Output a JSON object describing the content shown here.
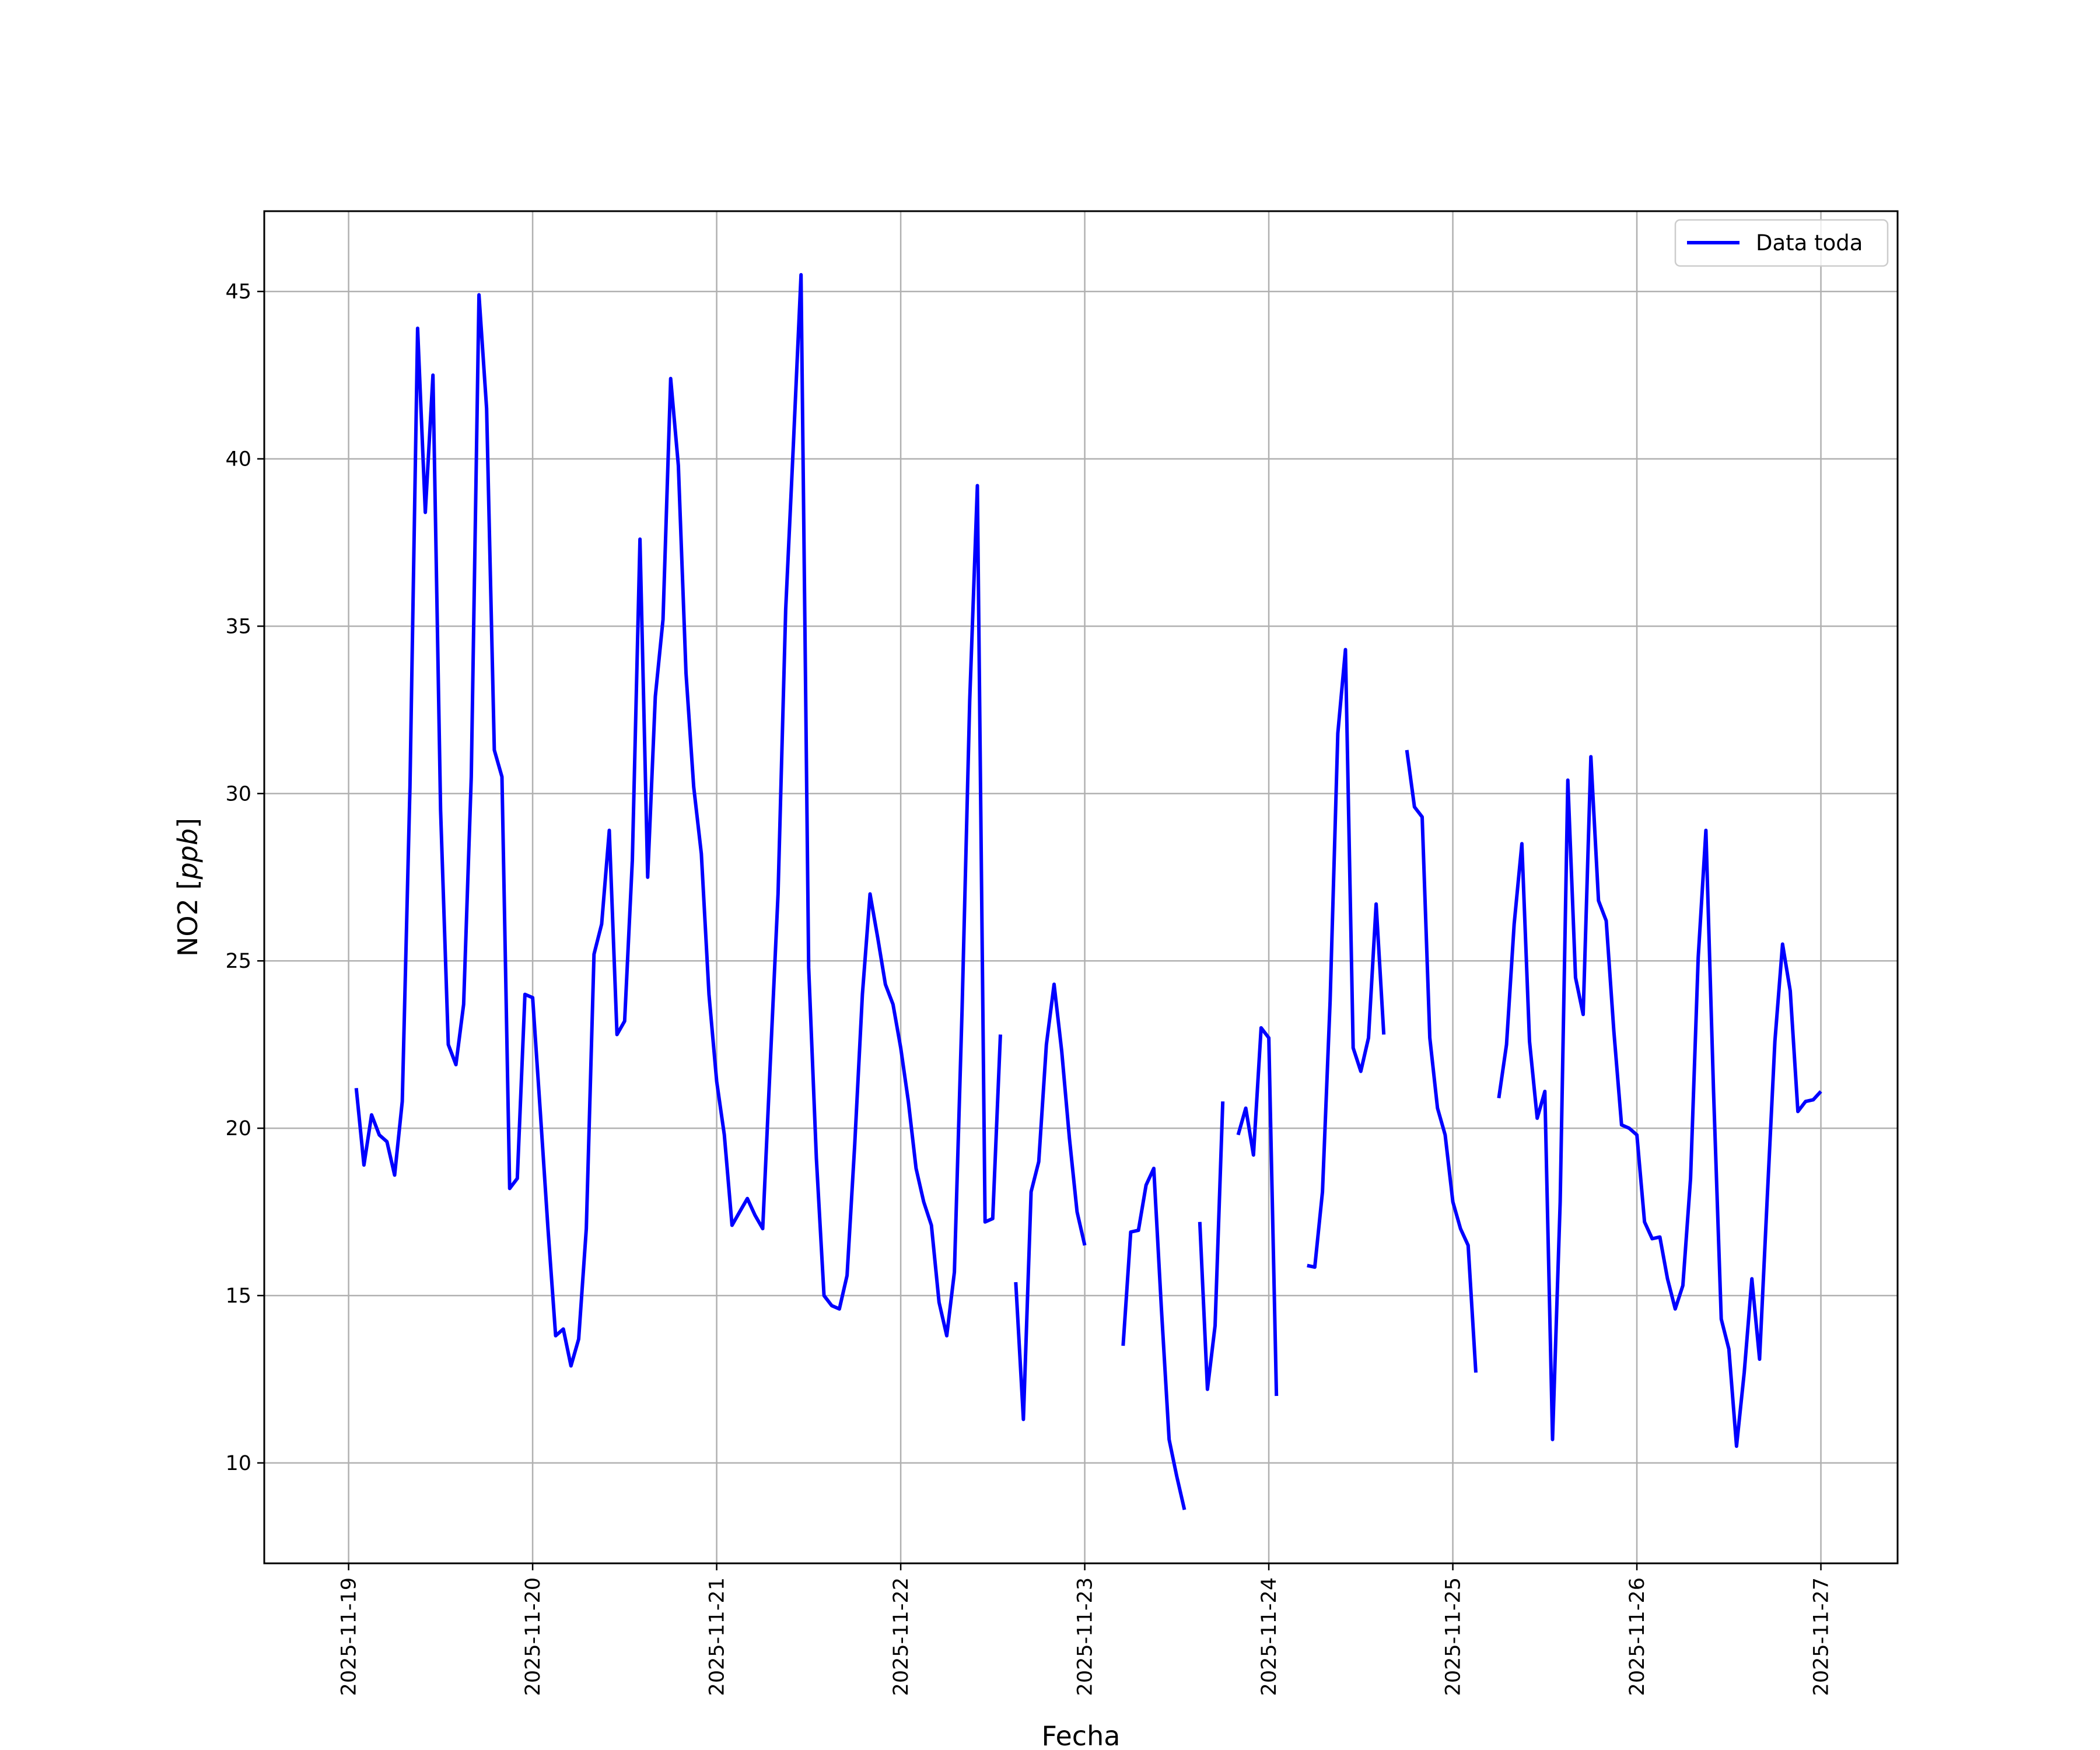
{
  "chart_data": {
    "type": "line",
    "xlabel": "Fecha",
    "ylabel_text": "NO2",
    "ylabel_unit": "ppb",
    "x_ticks": [
      "2025-11-19",
      "2025-11-20",
      "2025-11-21",
      "2025-11-22",
      "2025-11-23",
      "2025-11-24",
      "2025-11-25",
      "2025-11-26",
      "2025-11-27"
    ],
    "y_ticks": [
      10,
      15,
      20,
      25,
      30,
      35,
      40,
      45
    ],
    "xlim": [
      "2025-11-18 13:00",
      "2025-11-27 10:00"
    ],
    "ylim": [
      7.0,
      47.4
    ],
    "grid": true,
    "legend_position": "top-right",
    "colors": {
      "line": "#0000ff",
      "grid": "#b0b0b0"
    },
    "series": [
      {
        "name": "Data toda",
        "points": [
          [
            "2025-11-19 01:00",
            21.2
          ],
          [
            "2025-11-19 02:00",
            18.9
          ],
          [
            "2025-11-19 03:00",
            20.4
          ],
          [
            "2025-11-19 04:00",
            19.8
          ],
          [
            "2025-11-19 05:00",
            19.6
          ],
          [
            "2025-11-19 06:00",
            18.6
          ],
          [
            "2025-11-19 07:00",
            20.8
          ],
          [
            "2025-11-19 08:00",
            30.2
          ],
          [
            "2025-11-19 09:00",
            43.9
          ],
          [
            "2025-11-19 10:00",
            38.4
          ],
          [
            "2025-11-19 11:00",
            42.5
          ],
          [
            "2025-11-19 12:00",
            29.5
          ],
          [
            "2025-11-19 13:00",
            22.5
          ],
          [
            "2025-11-19 14:00",
            21.9
          ],
          [
            "2025-11-19 15:00",
            23.7
          ],
          [
            "2025-11-19 16:00",
            30.5
          ],
          [
            "2025-11-19 17:00",
            44.9
          ],
          [
            "2025-11-19 18:00",
            41.5
          ],
          [
            "2025-11-19 19:00",
            31.3
          ],
          [
            "2025-11-19 20:00",
            30.5
          ],
          [
            "2025-11-19 21:00",
            18.2
          ],
          [
            "2025-11-19 22:00",
            18.5
          ],
          [
            "2025-11-19 23:00",
            24.0
          ],
          [
            "2025-11-20 00:00",
            23.9
          ],
          [
            "2025-11-20 01:00",
            20.5
          ],
          [
            "2025-11-20 02:00",
            17.0
          ],
          [
            "2025-11-20 03:00",
            13.8
          ],
          [
            "2025-11-20 04:00",
            14.0
          ],
          [
            "2025-11-20 05:00",
            12.9
          ],
          [
            "2025-11-20 06:00",
            13.7
          ],
          [
            "2025-11-20 07:00",
            17.0
          ],
          [
            "2025-11-20 08:00",
            25.2
          ],
          [
            "2025-11-20 09:00",
            26.1
          ],
          [
            "2025-11-20 10:00",
            28.9
          ],
          [
            "2025-11-20 11:00",
            22.8
          ],
          [
            "2025-11-20 12:00",
            23.2
          ],
          [
            "2025-11-20 13:00",
            28.0
          ],
          [
            "2025-11-20 14:00",
            37.6
          ],
          [
            "2025-11-20 15:00",
            27.5
          ],
          [
            "2025-11-20 16:00",
            32.9
          ],
          [
            "2025-11-20 17:00",
            35.2
          ],
          [
            "2025-11-20 18:00",
            42.4
          ],
          [
            "2025-11-20 19:00",
            39.8
          ],
          [
            "2025-11-20 20:00",
            33.6
          ],
          [
            "2025-11-20 21:00",
            30.2
          ],
          [
            "2025-11-20 22:00",
            28.2
          ],
          [
            "2025-11-20 23:00",
            24.0
          ],
          [
            "2025-11-21 00:00",
            21.4
          ],
          [
            "2025-11-21 01:00",
            19.8
          ],
          [
            "2025-11-21 02:00",
            17.1
          ],
          [
            "2025-11-21 03:00",
            17.5
          ],
          [
            "2025-11-21 04:00",
            17.9
          ],
          [
            "2025-11-21 05:00",
            17.4
          ],
          [
            "2025-11-21 06:00",
            17.0
          ],
          [
            "2025-11-21 07:00",
            22.0
          ],
          [
            "2025-11-21 08:00",
            27.0
          ],
          [
            "2025-11-21 09:00",
            35.5
          ],
          [
            "2025-11-21 10:00",
            40.4
          ],
          [
            "2025-11-21 11:00",
            45.5
          ],
          [
            "2025-11-21 12:00",
            24.8
          ],
          [
            "2025-11-21 13:00",
            19.1
          ],
          [
            "2025-11-21 14:00",
            15.0
          ],
          [
            "2025-11-21 15:00",
            14.7
          ],
          [
            "2025-11-21 16:00",
            14.6
          ],
          [
            "2025-11-21 17:00",
            15.6
          ],
          [
            "2025-11-21 18:00",
            19.5
          ],
          [
            "2025-11-21 19:00",
            24.0
          ],
          [
            "2025-11-21 20:00",
            27.0
          ],
          [
            "2025-11-21 21:00",
            25.7
          ],
          [
            "2025-11-21 22:00",
            24.3
          ],
          [
            "2025-11-21 23:00",
            23.7
          ],
          [
            "2025-11-22 00:00",
            22.4
          ],
          [
            "2025-11-22 01:00",
            20.8
          ],
          [
            "2025-11-22 02:00",
            18.8
          ],
          [
            "2025-11-22 03:00",
            17.8
          ],
          [
            "2025-11-22 04:00",
            17.1
          ],
          [
            "2025-11-22 05:00",
            14.8
          ],
          [
            "2025-11-22 06:00",
            13.8
          ],
          [
            "2025-11-22 07:00",
            15.7
          ],
          [
            "2025-11-22 08:00",
            23.5
          ],
          [
            "2025-11-22 09:00",
            32.8
          ],
          [
            "2025-11-22 10:00",
            39.2
          ],
          [
            "2025-11-22 11:00",
            17.2
          ],
          [
            "2025-11-22 12:00",
            17.3
          ],
          [
            "2025-11-22 13:00",
            22.8
          ],
          null,
          [
            "2025-11-22 15:00",
            15.4
          ],
          [
            "2025-11-22 16:00",
            11.3
          ],
          [
            "2025-11-22 17:00",
            18.1
          ],
          [
            "2025-11-22 18:00",
            19.0
          ],
          [
            "2025-11-22 19:00",
            22.5
          ],
          [
            "2025-11-22 20:00",
            24.3
          ],
          [
            "2025-11-22 21:00",
            22.3
          ],
          [
            "2025-11-22 22:00",
            19.7
          ],
          [
            "2025-11-22 23:00",
            17.5
          ],
          [
            "2025-11-23 00:00",
            16.5
          ],
          null,
          [
            "2025-11-23 05:00",
            13.5
          ],
          [
            "2025-11-23 06:00",
            16.9
          ],
          [
            "2025-11-23 07:00",
            16.95
          ],
          [
            "2025-11-23 08:00",
            18.3
          ],
          [
            "2025-11-23 09:00",
            18.8
          ],
          [
            "2025-11-23 10:00",
            14.6
          ],
          [
            "2025-11-23 11:00",
            10.7
          ],
          [
            "2025-11-23 12:00",
            9.6
          ],
          [
            "2025-11-23 13:00",
            8.6
          ],
          null,
          [
            "2025-11-23 15:00",
            17.2
          ],
          [
            "2025-11-23 16:00",
            12.2
          ],
          [
            "2025-11-23 17:00",
            14.1
          ],
          [
            "2025-11-23 18:00",
            20.8
          ],
          null,
          [
            "2025-11-23 20:00",
            19.8
          ],
          [
            "2025-11-23 21:00",
            20.6
          ],
          [
            "2025-11-23 22:00",
            19.2
          ],
          [
            "2025-11-23 23:00",
            23.0
          ],
          [
            "2025-11-24 00:00",
            22.7
          ],
          [
            "2025-11-24 01:00",
            12.0
          ],
          null,
          [
            "2025-11-24 05:00",
            15.9
          ],
          [
            "2025-11-24 06:00",
            15.85
          ],
          [
            "2025-11-24 07:00",
            18.1
          ],
          [
            "2025-11-24 08:00",
            23.8
          ],
          [
            "2025-11-24 09:00",
            31.8
          ],
          [
            "2025-11-24 10:00",
            34.3
          ],
          [
            "2025-11-24 11:00",
            22.4
          ],
          [
            "2025-11-24 12:00",
            21.7
          ],
          [
            "2025-11-24 13:00",
            22.7
          ],
          [
            "2025-11-24 14:00",
            26.7
          ],
          [
            "2025-11-24 15:00",
            22.8
          ],
          null,
          [
            "2025-11-24 18:00",
            31.3
          ],
          [
            "2025-11-24 19:00",
            29.6
          ],
          [
            "2025-11-24 20:00",
            29.3
          ],
          [
            "2025-11-24 21:00",
            22.7
          ],
          [
            "2025-11-24 22:00",
            20.6
          ],
          [
            "2025-11-24 23:00",
            19.8
          ],
          [
            "2025-11-25 00:00",
            17.8
          ],
          [
            "2025-11-25 01:00",
            17.0
          ],
          [
            "2025-11-25 02:00",
            16.5
          ],
          [
            "2025-11-25 03:00",
            12.7
          ],
          null,
          [
            "2025-11-25 06:00",
            20.9
          ],
          [
            "2025-11-25 07:00",
            22.5
          ],
          [
            "2025-11-25 08:00",
            26.1
          ],
          [
            "2025-11-25 09:00",
            28.5
          ],
          [
            "2025-11-25 10:00",
            22.6
          ],
          [
            "2025-11-25 11:00",
            20.3
          ],
          [
            "2025-11-25 12:00",
            21.1
          ],
          [
            "2025-11-25 13:00",
            10.7
          ],
          [
            "2025-11-25 14:00",
            17.8
          ],
          [
            "2025-11-25 15:00",
            30.4
          ],
          [
            "2025-11-25 16:00",
            24.5
          ],
          [
            "2025-11-25 17:00",
            23.4
          ],
          [
            "2025-11-25 18:00",
            31.1
          ],
          [
            "2025-11-25 19:00",
            26.8
          ],
          [
            "2025-11-25 20:00",
            26.2
          ],
          [
            "2025-11-25 21:00",
            22.9
          ],
          [
            "2025-11-25 22:00",
            20.1
          ],
          [
            "2025-11-25 23:00",
            20.0
          ],
          [
            "2025-11-26 00:00",
            19.8
          ],
          [
            "2025-11-26 01:00",
            17.2
          ],
          [
            "2025-11-26 02:00",
            16.7
          ],
          [
            "2025-11-26 03:00",
            16.75
          ],
          [
            "2025-11-26 04:00",
            15.5
          ],
          [
            "2025-11-26 05:00",
            14.6
          ],
          [
            "2025-11-26 06:00",
            15.3
          ],
          [
            "2025-11-26 07:00",
            18.5
          ],
          [
            "2025-11-26 08:00",
            25.1
          ],
          [
            "2025-11-26 09:00",
            28.9
          ],
          [
            "2025-11-26 10:00",
            21.1
          ],
          [
            "2025-11-26 11:00",
            14.3
          ],
          [
            "2025-11-26 12:00",
            13.4
          ],
          [
            "2025-11-26 13:00",
            10.5
          ],
          [
            "2025-11-26 14:00",
            12.7
          ],
          [
            "2025-11-26 15:00",
            15.5
          ],
          [
            "2025-11-26 16:00",
            13.1
          ],
          [
            "2025-11-26 17:00",
            17.9
          ],
          [
            "2025-11-26 18:00",
            22.6
          ],
          [
            "2025-11-26 19:00",
            25.5
          ],
          [
            "2025-11-26 20:00",
            24.1
          ],
          [
            "2025-11-26 21:00",
            20.5
          ],
          [
            "2025-11-26 22:00",
            20.8
          ],
          [
            "2025-11-26 23:00",
            20.85
          ],
          [
            "2025-11-27 00:00",
            21.1
          ]
        ]
      }
    ]
  }
}
